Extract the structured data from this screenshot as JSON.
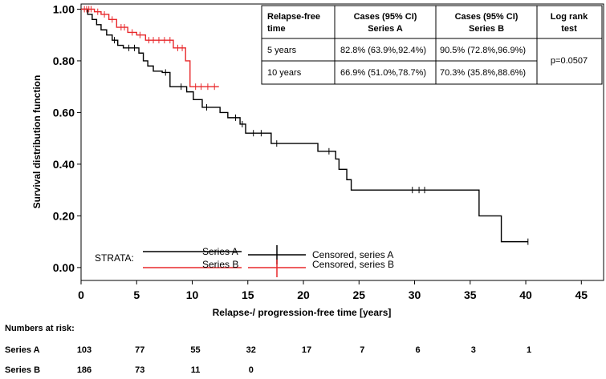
{
  "chart_data": {
    "type": "line",
    "ylabel": "Survival distribution function",
    "xlabel": "Relapse-/ progression-free time [years]",
    "xlim": [
      0,
      47
    ],
    "ylim": [
      -0.05,
      1.02
    ],
    "x_ticks": [
      0,
      5,
      10,
      15,
      20,
      25,
      30,
      35,
      40,
      45
    ],
    "y_ticks": [
      0.0,
      0.2,
      0.4,
      0.6,
      0.8,
      1.0
    ],
    "y_tick_labels": [
      "0.00",
      "0.20",
      "0.40",
      "0.60",
      "0.80",
      "1.00"
    ],
    "series": [
      {
        "key": "A",
        "color": "#000000",
        "steps": [
          [
            0,
            1.0
          ],
          [
            0.6,
            0.98
          ],
          [
            1.0,
            0.96
          ],
          [
            1.4,
            0.94
          ],
          [
            1.8,
            0.92
          ],
          [
            2.3,
            0.9
          ],
          [
            2.8,
            0.88
          ],
          [
            3.3,
            0.86
          ],
          [
            3.8,
            0.85
          ],
          [
            5.2,
            0.83
          ],
          [
            5.6,
            0.8
          ],
          [
            6.0,
            0.78
          ],
          [
            6.5,
            0.76
          ],
          [
            7.3,
            0.755
          ],
          [
            8.0,
            0.7
          ],
          [
            9.5,
            0.68
          ],
          [
            10.1,
            0.65
          ],
          [
            10.9,
            0.62
          ],
          [
            12.5,
            0.6
          ],
          [
            13.2,
            0.58
          ],
          [
            14.3,
            0.555
          ],
          [
            14.8,
            0.52
          ],
          [
            17.1,
            0.48
          ],
          [
            21.3,
            0.45
          ],
          [
            22.9,
            0.42
          ],
          [
            23.2,
            0.38
          ],
          [
            23.9,
            0.34
          ],
          [
            24.3,
            0.3
          ],
          [
            35.8,
            0.2
          ],
          [
            37.8,
            0.1
          ],
          [
            40.2,
            0.1
          ]
        ],
        "censored": [
          [
            3.0,
            0.88
          ],
          [
            4.3,
            0.85
          ],
          [
            4.8,
            0.85
          ],
          [
            7.6,
            0.755
          ],
          [
            9.0,
            0.7
          ],
          [
            11.3,
            0.62
          ],
          [
            13.9,
            0.58
          ],
          [
            14.5,
            0.555
          ],
          [
            15.5,
            0.52
          ],
          [
            16.2,
            0.52
          ],
          [
            17.6,
            0.48
          ],
          [
            22.3,
            0.45
          ],
          [
            29.8,
            0.3
          ],
          [
            30.4,
            0.3
          ],
          [
            30.9,
            0.3
          ],
          [
            40.2,
            0.1
          ]
        ]
      },
      {
        "key": "B",
        "color": "#e8282b",
        "steps": [
          [
            0,
            1.0
          ],
          [
            1.2,
            0.99
          ],
          [
            1.8,
            0.98
          ],
          [
            2.5,
            0.96
          ],
          [
            3.2,
            0.93
          ],
          [
            4.2,
            0.91
          ],
          [
            5.0,
            0.9
          ],
          [
            5.8,
            0.88
          ],
          [
            8.3,
            0.85
          ],
          [
            9.4,
            0.8
          ],
          [
            9.8,
            0.7
          ],
          [
            12.4,
            0.7
          ]
        ],
        "censored": [
          [
            0.3,
            1.0
          ],
          [
            0.5,
            1.0
          ],
          [
            0.7,
            1.0
          ],
          [
            0.9,
            1.0
          ],
          [
            1.5,
            0.99
          ],
          [
            2.1,
            0.98
          ],
          [
            2.8,
            0.96
          ],
          [
            3.6,
            0.93
          ],
          [
            3.9,
            0.93
          ],
          [
            4.6,
            0.91
          ],
          [
            5.3,
            0.9
          ],
          [
            6.1,
            0.88
          ],
          [
            6.5,
            0.88
          ],
          [
            7.0,
            0.88
          ],
          [
            7.5,
            0.88
          ],
          [
            8.0,
            0.88
          ],
          [
            8.7,
            0.85
          ],
          [
            9.1,
            0.85
          ],
          [
            10.3,
            0.7
          ],
          [
            10.8,
            0.7
          ],
          [
            11.4,
            0.7
          ],
          [
            12.0,
            0.7
          ]
        ]
      }
    ],
    "legend": {
      "strata_label": "STRATA:",
      "series_a": "Series A",
      "series_b": "Series B",
      "censored_a": "Censored, series A",
      "censored_b": "Censored, series B"
    },
    "stats_table": {
      "headers": {
        "col1": [
          "Relapse-free",
          "time"
        ],
        "col2": [
          "Cases (95% CI)",
          "Series A"
        ],
        "col3": [
          "Cases (95% CI)",
          "Series B"
        ],
        "col4": [
          "Log rank",
          "test"
        ]
      },
      "rows": [
        {
          "time": "5 years",
          "a": "82.8% (63.9%,92.4%)",
          "b": "90.5% (72.8%,96.9%)"
        },
        {
          "time": "10 years",
          "a": "66.9% (51.0%,78.7%)",
          "b": "70.3% (35.8%,88.6%)"
        }
      ],
      "p_value": "p=0.0507"
    },
    "numbers_at_risk": {
      "title": "Numbers at risk:",
      "rows": [
        {
          "label": "Series A",
          "values": [
            "103",
            "77",
            "55",
            "32",
            "17",
            "7",
            "6",
            "3",
            "1"
          ]
        },
        {
          "label": "Series B",
          "values": [
            "186",
            "73",
            "11",
            "0"
          ]
        }
      ]
    }
  }
}
